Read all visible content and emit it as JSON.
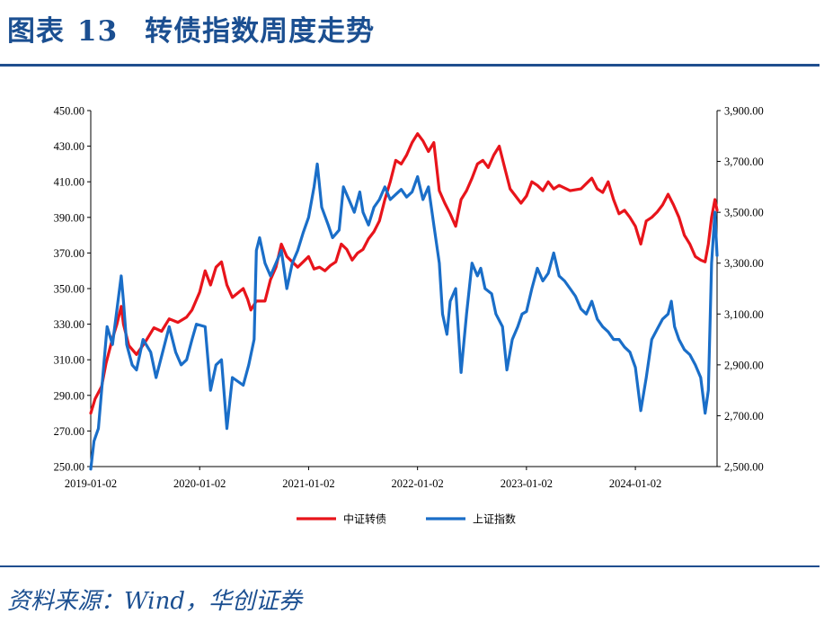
{
  "header": {
    "label": "图表",
    "number": "13",
    "title": "转债指数周度走势"
  },
  "source": "资料来源：Wind，华创证券",
  "colors": {
    "title": "#1b4f91",
    "rule": "#1f4e8f",
    "series_a": "#e8141b",
    "series_b": "#1a6ec8"
  },
  "chart_data": {
    "type": "line",
    "title": "转债指数周度走势",
    "x_labels": [
      "2019-01-02",
      "2020-01-02",
      "2021-01-02",
      "2022-01-02",
      "2023-01-02",
      "2024-01-02"
    ],
    "x_range": [
      2019.0,
      2024.75
    ],
    "left_axis": {
      "min": 250,
      "max": 450,
      "ticks": [
        "250.00",
        "270.00",
        "290.00",
        "310.00",
        "330.00",
        "350.00",
        "370.00",
        "390.00",
        "410.00",
        "430.00",
        "450.00"
      ]
    },
    "right_axis": {
      "min": 2500,
      "max": 3900,
      "ticks": [
        "2,500.00",
        "2,700.00",
        "2,900.00",
        "3,100.00",
        "3,300.00",
        "3,500.00",
        "3,700.00",
        "3,900.00"
      ]
    },
    "legend_position": "bottom",
    "series": [
      {
        "name": "中证转债",
        "axis": "left",
        "color": "#e8141b",
        "points": [
          [
            2019.0,
            280
          ],
          [
            2019.04,
            288
          ],
          [
            2019.1,
            295
          ],
          [
            2019.14,
            308
          ],
          [
            2019.2,
            322
          ],
          [
            2019.24,
            330
          ],
          [
            2019.28,
            340
          ],
          [
            2019.3,
            330
          ],
          [
            2019.35,
            318
          ],
          [
            2019.42,
            313
          ],
          [
            2019.5,
            320
          ],
          [
            2019.58,
            328
          ],
          [
            2019.65,
            326
          ],
          [
            2019.72,
            333
          ],
          [
            2019.8,
            331
          ],
          [
            2019.88,
            334
          ],
          [
            2019.93,
            338
          ],
          [
            2020.0,
            348
          ],
          [
            2020.05,
            360
          ],
          [
            2020.1,
            352
          ],
          [
            2020.15,
            362
          ],
          [
            2020.2,
            365
          ],
          [
            2020.25,
            352
          ],
          [
            2020.3,
            345
          ],
          [
            2020.4,
            350
          ],
          [
            2020.44,
            344
          ],
          [
            2020.47,
            338
          ],
          [
            2020.52,
            343
          ],
          [
            2020.6,
            343
          ],
          [
            2020.65,
            355
          ],
          [
            2020.7,
            362
          ],
          [
            2020.75,
            375
          ],
          [
            2020.8,
            368
          ],
          [
            2020.85,
            365
          ],
          [
            2020.9,
            362
          ],
          [
            2020.95,
            365
          ],
          [
            2021.0,
            368
          ],
          [
            2021.05,
            361
          ],
          [
            2021.1,
            362
          ],
          [
            2021.15,
            360
          ],
          [
            2021.2,
            363
          ],
          [
            2021.25,
            365
          ],
          [
            2021.3,
            375
          ],
          [
            2021.35,
            372
          ],
          [
            2021.4,
            366
          ],
          [
            2021.45,
            370
          ],
          [
            2021.5,
            372
          ],
          [
            2021.55,
            378
          ],
          [
            2021.6,
            382
          ],
          [
            2021.65,
            388
          ],
          [
            2021.7,
            400
          ],
          [
            2021.75,
            410
          ],
          [
            2021.8,
            422
          ],
          [
            2021.85,
            420
          ],
          [
            2021.9,
            425
          ],
          [
            2021.95,
            432
          ],
          [
            2022.0,
            437
          ],
          [
            2022.05,
            433
          ],
          [
            2022.1,
            427
          ],
          [
            2022.15,
            432
          ],
          [
            2022.2,
            405
          ],
          [
            2022.25,
            398
          ],
          [
            2022.3,
            392
          ],
          [
            2022.35,
            385
          ],
          [
            2022.4,
            400
          ],
          [
            2022.45,
            405
          ],
          [
            2022.5,
            412
          ],
          [
            2022.55,
            420
          ],
          [
            2022.6,
            422
          ],
          [
            2022.65,
            418
          ],
          [
            2022.7,
            425
          ],
          [
            2022.75,
            430
          ],
          [
            2022.8,
            418
          ],
          [
            2022.85,
            406
          ],
          [
            2022.9,
            402
          ],
          [
            2022.95,
            398
          ],
          [
            2023.0,
            402
          ],
          [
            2023.05,
            410
          ],
          [
            2023.1,
            408
          ],
          [
            2023.15,
            405
          ],
          [
            2023.2,
            410
          ],
          [
            2023.25,
            406
          ],
          [
            2023.3,
            408
          ],
          [
            2023.4,
            405
          ],
          [
            2023.5,
            406
          ],
          [
            2023.55,
            409
          ],
          [
            2023.6,
            412
          ],
          [
            2023.65,
            406
          ],
          [
            2023.7,
            404
          ],
          [
            2023.75,
            410
          ],
          [
            2023.8,
            400
          ],
          [
            2023.85,
            392
          ],
          [
            2023.9,
            394
          ],
          [
            2023.95,
            390
          ],
          [
            2024.0,
            385
          ],
          [
            2024.05,
            375
          ],
          [
            2024.1,
            388
          ],
          [
            2024.15,
            390
          ],
          [
            2024.2,
            393
          ],
          [
            2024.25,
            397
          ],
          [
            2024.3,
            403
          ],
          [
            2024.35,
            397
          ],
          [
            2024.4,
            390
          ],
          [
            2024.45,
            380
          ],
          [
            2024.5,
            375
          ],
          [
            2024.55,
            368
          ],
          [
            2024.6,
            366
          ],
          [
            2024.64,
            365
          ],
          [
            2024.67,
            375
          ],
          [
            2024.7,
            390
          ],
          [
            2024.73,
            400
          ],
          [
            2024.75,
            394
          ]
        ]
      },
      {
        "name": "上证指数",
        "axis": "right",
        "color": "#1a6ec8",
        "points": [
          [
            2019.0,
            2490
          ],
          [
            2019.03,
            2600
          ],
          [
            2019.07,
            2650
          ],
          [
            2019.12,
            2900
          ],
          [
            2019.15,
            3050
          ],
          [
            2019.2,
            2980
          ],
          [
            2019.25,
            3150
          ],
          [
            2019.28,
            3250
          ],
          [
            2019.3,
            3150
          ],
          [
            2019.33,
            2980
          ],
          [
            2019.38,
            2900
          ],
          [
            2019.42,
            2880
          ],
          [
            2019.48,
            3000
          ],
          [
            2019.55,
            2950
          ],
          [
            2019.6,
            2850
          ],
          [
            2019.66,
            2950
          ],
          [
            2019.72,
            3050
          ],
          [
            2019.78,
            2950
          ],
          [
            2019.83,
            2900
          ],
          [
            2019.88,
            2920
          ],
          [
            2019.93,
            3000
          ],
          [
            2019.97,
            3060
          ],
          [
            2020.05,
            3050
          ],
          [
            2020.1,
            2800
          ],
          [
            2020.15,
            2900
          ],
          [
            2020.2,
            2920
          ],
          [
            2020.25,
            2650
          ],
          [
            2020.3,
            2850
          ],
          [
            2020.4,
            2820
          ],
          [
            2020.45,
            2900
          ],
          [
            2020.5,
            3000
          ],
          [
            2020.52,
            3350
          ],
          [
            2020.55,
            3400
          ],
          [
            2020.6,
            3300
          ],
          [
            2020.65,
            3250
          ],
          [
            2020.7,
            3300
          ],
          [
            2020.75,
            3350
          ],
          [
            2020.8,
            3200
          ],
          [
            2020.85,
            3300
          ],
          [
            2020.9,
            3350
          ],
          [
            2020.95,
            3420
          ],
          [
            2021.0,
            3480
          ],
          [
            2021.05,
            3600
          ],
          [
            2021.08,
            3690
          ],
          [
            2021.12,
            3520
          ],
          [
            2021.18,
            3450
          ],
          [
            2021.22,
            3400
          ],
          [
            2021.28,
            3430
          ],
          [
            2021.32,
            3600
          ],
          [
            2021.37,
            3550
          ],
          [
            2021.42,
            3500
          ],
          [
            2021.47,
            3580
          ],
          [
            2021.5,
            3500
          ],
          [
            2021.55,
            3450
          ],
          [
            2021.6,
            3520
          ],
          [
            2021.65,
            3550
          ],
          [
            2021.7,
            3600
          ],
          [
            2021.75,
            3550
          ],
          [
            2021.8,
            3570
          ],
          [
            2021.85,
            3590
          ],
          [
            2021.9,
            3560
          ],
          [
            2021.95,
            3580
          ],
          [
            2022.0,
            3640
          ],
          [
            2022.05,
            3550
          ],
          [
            2022.1,
            3600
          ],
          [
            2022.15,
            3450
          ],
          [
            2022.2,
            3300
          ],
          [
            2022.23,
            3100
          ],
          [
            2022.27,
            3020
          ],
          [
            2022.3,
            3150
          ],
          [
            2022.35,
            3200
          ],
          [
            2022.4,
            2870
          ],
          [
            2022.45,
            3100
          ],
          [
            2022.5,
            3300
          ],
          [
            2022.55,
            3250
          ],
          [
            2022.58,
            3280
          ],
          [
            2022.62,
            3200
          ],
          [
            2022.68,
            3180
          ],
          [
            2022.72,
            3100
          ],
          [
            2022.78,
            3050
          ],
          [
            2022.82,
            2880
          ],
          [
            2022.87,
            3000
          ],
          [
            2022.92,
            3050
          ],
          [
            2022.96,
            3100
          ],
          [
            2023.0,
            3110
          ],
          [
            2023.05,
            3200
          ],
          [
            2023.1,
            3280
          ],
          [
            2023.15,
            3230
          ],
          [
            2023.2,
            3260
          ],
          [
            2023.25,
            3340
          ],
          [
            2023.3,
            3250
          ],
          [
            2023.35,
            3230
          ],
          [
            2023.4,
            3200
          ],
          [
            2023.45,
            3170
          ],
          [
            2023.5,
            3120
          ],
          [
            2023.55,
            3100
          ],
          [
            2023.6,
            3150
          ],
          [
            2023.65,
            3080
          ],
          [
            2023.7,
            3050
          ],
          [
            2023.75,
            3030
          ],
          [
            2023.8,
            3000
          ],
          [
            2023.85,
            3000
          ],
          [
            2023.9,
            2970
          ],
          [
            2023.95,
            2950
          ],
          [
            2024.0,
            2890
          ],
          [
            2024.05,
            2720
          ],
          [
            2024.1,
            2850
          ],
          [
            2024.15,
            3000
          ],
          [
            2024.2,
            3040
          ],
          [
            2024.25,
            3080
          ],
          [
            2024.3,
            3100
          ],
          [
            2024.33,
            3150
          ],
          [
            2024.36,
            3050
          ],
          [
            2024.4,
            3000
          ],
          [
            2024.45,
            2960
          ],
          [
            2024.5,
            2940
          ],
          [
            2024.55,
            2900
          ],
          [
            2024.6,
            2850
          ],
          [
            2024.64,
            2710
          ],
          [
            2024.67,
            2800
          ],
          [
            2024.7,
            3300
          ],
          [
            2024.73,
            3500
          ],
          [
            2024.75,
            3330
          ]
        ]
      }
    ]
  }
}
